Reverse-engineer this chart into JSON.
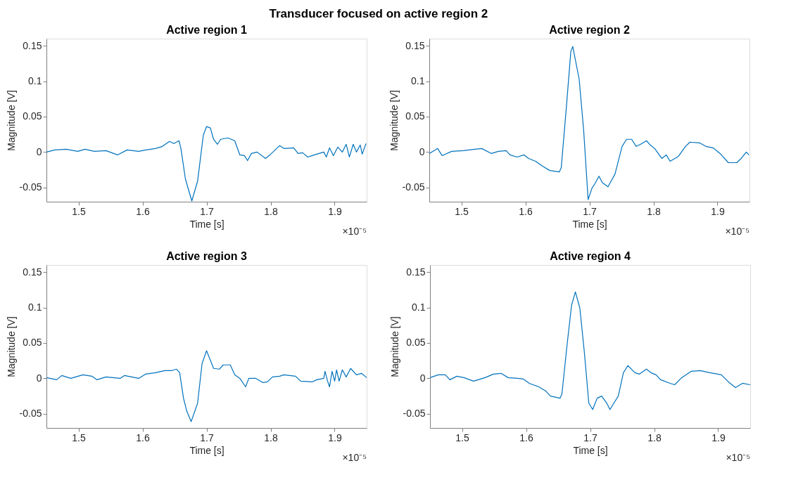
{
  "chart_data": [
    {
      "type": "other",
      "title": "Transducer focused on active region 2"
    },
    {
      "type": "line",
      "title": "Active region 1",
      "xlabel": "Time [s]",
      "ylabel": "Magnitude [V]",
      "xlim": [
        1.45,
        1.95
      ],
      "xticks": [
        1.5,
        1.6,
        1.7,
        1.8,
        1.9
      ],
      "ylim": [
        -0.07,
        0.16
      ],
      "yticks": [
        -0.05,
        0,
        0.05,
        0.1,
        0.15
      ],
      "grid": false,
      "annotations": [
        "×10⁻⁵"
      ],
      "series": [
        {
          "color": "#0072bd",
          "x": [
            1.45,
            1.463,
            1.481,
            1.499,
            1.51,
            1.525,
            1.543,
            1.561,
            1.576,
            1.594,
            1.605,
            1.62,
            1.631,
            1.642,
            1.649,
            1.657,
            1.66,
            1.667,
            1.677,
            1.686,
            1.695,
            1.7,
            1.706,
            1.711,
            1.717,
            1.722,
            1.733,
            1.744,
            1.752,
            1.759,
            1.764,
            1.77,
            1.779,
            1.792,
            1.799,
            1.814,
            1.821,
            1.836,
            1.843,
            1.85,
            1.858,
            1.865,
            1.872,
            1.883,
            1.887,
            1.892,
            1.898,
            1.905,
            1.912,
            1.918,
            1.923,
            1.929,
            1.934,
            1.94,
            1.943,
            1.949
          ],
          "values": [
            0.0,
            0.003,
            0.004,
            0.001,
            0.004,
            0.001,
            0.002,
            -0.004,
            0.003,
            0.001,
            0.003,
            0.005,
            0.008,
            0.015,
            0.012,
            0.016,
            0.005,
            -0.038,
            -0.069,
            -0.041,
            0.024,
            0.036,
            0.034,
            0.018,
            0.011,
            0.018,
            0.02,
            0.016,
            -0.004,
            -0.005,
            -0.012,
            -0.002,
            0.0,
            -0.009,
            -0.004,
            0.009,
            0.005,
            0.006,
            -0.002,
            -0.001,
            -0.007,
            -0.005,
            -0.003,
            0.0,
            -0.007,
            0.006,
            -0.005,
            0.007,
            0.0,
            0.011,
            -0.007,
            0.011,
            0.0,
            0.01,
            -0.003,
            0.012
          ]
        }
      ]
    },
    {
      "type": "line",
      "title": "Active region 2",
      "xlabel": "Time [s]",
      "ylabel": "Magnitude [V]",
      "xlim": [
        1.45,
        1.95
      ],
      "xticks": [
        1.5,
        1.6,
        1.7,
        1.8,
        1.9
      ],
      "ylim": [
        -0.07,
        0.16
      ],
      "yticks": [
        -0.05,
        0,
        0.05,
        0.1,
        0.15
      ],
      "grid": false,
      "annotations": [
        "×10⁻⁵"
      ],
      "series": [
        {
          "color": "#0072bd",
          "x": [
            1.45,
            1.463,
            1.47,
            1.485,
            1.503,
            1.521,
            1.532,
            1.547,
            1.558,
            1.57,
            1.576,
            1.587,
            1.598,
            1.605,
            1.616,
            1.627,
            1.638,
            1.653,
            1.656,
            1.664,
            1.671,
            1.674,
            1.684,
            1.691,
            1.698,
            1.704,
            1.709,
            1.715,
            1.72,
            1.729,
            1.74,
            1.751,
            1.758,
            1.766,
            1.773,
            1.78,
            1.789,
            1.795,
            1.802,
            1.813,
            1.82,
            1.826,
            1.839,
            1.85,
            1.857,
            1.872,
            1.882,
            1.893,
            1.904,
            1.917,
            1.93,
            1.937,
            1.945,
            1.949
          ],
          "values": [
            -0.002,
            0.005,
            -0.005,
            0.001,
            0.002,
            0.004,
            0.005,
            -0.002,
            0.001,
            0.002,
            -0.004,
            -0.007,
            -0.004,
            -0.009,
            -0.013,
            -0.02,
            -0.026,
            -0.028,
            -0.022,
            0.063,
            0.142,
            0.149,
            0.103,
            0.031,
            -0.067,
            -0.051,
            -0.044,
            -0.034,
            -0.043,
            -0.049,
            -0.031,
            0.008,
            0.018,
            0.018,
            0.008,
            0.011,
            0.016,
            0.01,
            0.005,
            -0.009,
            -0.004,
            -0.013,
            -0.006,
            0.008,
            0.014,
            0.013,
            0.008,
            0.006,
            -0.002,
            -0.015,
            -0.015,
            -0.009,
            0.0,
            -0.004
          ]
        }
      ]
    },
    {
      "type": "line",
      "title": "Active region 3",
      "xlabel": "Time [s]",
      "ylabel": "Magnitude [V]",
      "xlim": [
        1.45,
        1.95
      ],
      "xticks": [
        1.5,
        1.6,
        1.7,
        1.8,
        1.9
      ],
      "ylim": [
        -0.07,
        0.16
      ],
      "yticks": [
        -0.05,
        0,
        0.05,
        0.1,
        0.15
      ],
      "grid": false,
      "annotations": [
        "×10⁻⁵"
      ],
      "series": [
        {
          "color": "#0072bd",
          "x": [
            1.45,
            1.466,
            1.474,
            1.488,
            1.507,
            1.521,
            1.529,
            1.543,
            1.565,
            1.572,
            1.594,
            1.605,
            1.62,
            1.635,
            1.646,
            1.653,
            1.658,
            1.664,
            1.669,
            1.676,
            1.686,
            1.693,
            1.7,
            1.711,
            1.72,
            1.726,
            1.737,
            1.744,
            1.752,
            1.761,
            1.766,
            1.777,
            1.788,
            1.795,
            1.803,
            1.814,
            1.821,
            1.839,
            1.847,
            1.865,
            1.872,
            1.883,
            1.885,
            1.889,
            1.892,
            1.896,
            1.9,
            1.903,
            1.907,
            1.912,
            1.918,
            1.925,
            1.934,
            1.942,
            1.95
          ],
          "values": [
            0.001,
            -0.002,
            0.004,
            0.0,
            0.005,
            0.003,
            -0.002,
            0.002,
            0.0,
            0.004,
            0.0,
            0.006,
            0.008,
            0.011,
            0.011,
            0.013,
            0.008,
            -0.028,
            -0.046,
            -0.061,
            -0.035,
            0.021,
            0.039,
            0.014,
            0.013,
            0.019,
            0.019,
            0.005,
            0.0,
            -0.012,
            0.0,
            0.0,
            -0.006,
            -0.005,
            0.002,
            0.003,
            0.005,
            0.003,
            -0.004,
            -0.005,
            -0.002,
            0.0,
            0.01,
            -0.004,
            -0.012,
            0.01,
            -0.004,
            0.012,
            -0.004,
            0.012,
            0.002,
            0.014,
            0.005,
            0.007,
            0.001
          ]
        }
      ]
    },
    {
      "type": "line",
      "title": "Active region 4",
      "xlabel": "Time [s]",
      "ylabel": "Magnitude [V]",
      "xlim": [
        1.45,
        1.95
      ],
      "xticks": [
        1.5,
        1.6,
        1.7,
        1.8,
        1.9
      ],
      "ylim": [
        -0.07,
        0.16
      ],
      "yticks": [
        -0.05,
        0,
        0.05,
        0.1,
        0.15
      ],
      "grid": false,
      "annotations": [
        "×10⁻⁵"
      ],
      "series": [
        {
          "color": "#0072bd",
          "x": [
            1.45,
            1.463,
            1.474,
            1.481,
            1.492,
            1.503,
            1.518,
            1.536,
            1.549,
            1.561,
            1.572,
            1.587,
            1.596,
            1.605,
            1.62,
            1.631,
            1.638,
            1.653,
            1.656,
            1.664,
            1.671,
            1.677,
            1.684,
            1.691,
            1.698,
            1.704,
            1.711,
            1.718,
            1.726,
            1.731,
            1.737,
            1.744,
            1.752,
            1.759,
            1.77,
            1.777,
            1.788,
            1.795,
            1.803,
            1.81,
            1.825,
            1.832,
            1.843,
            1.858,
            1.872,
            1.887,
            1.905,
            1.916,
            1.927,
            1.938,
            1.95
          ],
          "values": [
            0.001,
            0.005,
            0.005,
            -0.002,
            0.003,
            0.001,
            -0.004,
            0.001,
            0.006,
            0.007,
            0.001,
            0.0,
            -0.001,
            -0.007,
            -0.012,
            -0.018,
            -0.025,
            -0.028,
            -0.022,
            0.047,
            0.103,
            0.122,
            0.099,
            0.037,
            -0.035,
            -0.044,
            -0.028,
            -0.025,
            -0.035,
            -0.044,
            -0.035,
            -0.025,
            0.008,
            0.018,
            0.008,
            0.006,
            0.013,
            0.008,
            0.005,
            -0.002,
            -0.007,
            -0.009,
            0.001,
            0.01,
            0.011,
            0.008,
            0.005,
            -0.005,
            -0.013,
            -0.007,
            -0.009
          ]
        }
      ]
    }
  ]
}
